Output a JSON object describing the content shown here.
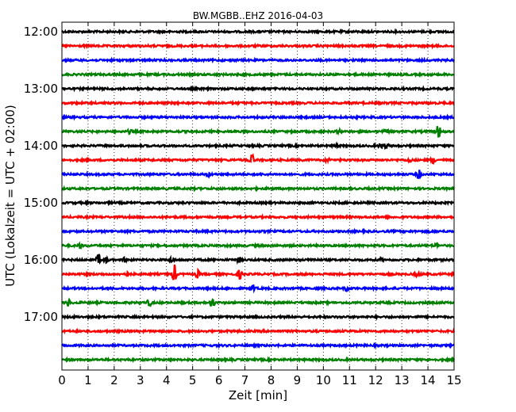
{
  "chart_data": {
    "type": "line",
    "title": "BW.MGBB..EHZ 2016-04-03",
    "xlabel": "Zeit  [min]",
    "ylabel": "UTC (Lokalzeit = UTC + 02:00)",
    "xlim": [
      0,
      15
    ],
    "x_ticks": [
      "0",
      "1",
      "2",
      "3",
      "4",
      "5",
      "6",
      "7",
      "8",
      "9",
      "10",
      "11",
      "12",
      "13",
      "14",
      "15"
    ],
    "y_ticks": [
      "12:00",
      "13:00",
      "14:00",
      "15:00",
      "16:00",
      "17:00"
    ],
    "grid": "vertical-dotted",
    "trace_colors": [
      "#000000",
      "#ff0000",
      "#0000ff",
      "#008000"
    ],
    "traces": [
      {
        "start": "12:00",
        "events": []
      },
      {
        "start": "12:15",
        "events": []
      },
      {
        "start": "12:30",
        "events": []
      },
      {
        "start": "12:45",
        "events": []
      },
      {
        "start": "13:00",
        "events": []
      },
      {
        "start": "13:15",
        "events": []
      },
      {
        "start": "13:30",
        "events": []
      },
      {
        "start": "13:45",
        "events": [
          {
            "t": 2.6,
            "amp": 0.2
          },
          {
            "t": 10.6,
            "amp": 0.2
          },
          {
            "t": 12.4,
            "amp": 0.25
          },
          {
            "t": 14.4,
            "amp": 0.8
          }
        ]
      },
      {
        "start": "14:00",
        "events": [
          {
            "t": 10.5,
            "amp": 0.15
          },
          {
            "t": 12.2,
            "amp": 0.3
          },
          {
            "t": 12.4,
            "amp": 0.25
          }
        ]
      },
      {
        "start": "14:15",
        "events": [
          {
            "t": 7.25,
            "amp": 0.8
          },
          {
            "t": 10.2,
            "amp": 0.2
          },
          {
            "t": 13.3,
            "amp": 0.2
          },
          {
            "t": 14.2,
            "amp": 0.3
          }
        ]
      },
      {
        "start": "14:30",
        "events": [
          {
            "t": 5.6,
            "amp": 0.2
          },
          {
            "t": 13.65,
            "amp": 0.55
          }
        ]
      },
      {
        "start": "14:45",
        "events": []
      },
      {
        "start": "15:00",
        "events": []
      },
      {
        "start": "15:15",
        "events": []
      },
      {
        "start": "15:30",
        "events": [
          {
            "t": 14.0,
            "amp": 0.15
          }
        ]
      },
      {
        "start": "15:45",
        "events": [
          {
            "t": 0.7,
            "amp": 0.3
          },
          {
            "t": 14.3,
            "amp": 0.2
          }
        ]
      },
      {
        "start": "16:00",
        "events": [
          {
            "t": 1.4,
            "amp": 0.6
          },
          {
            "t": 1.7,
            "amp": 0.25
          },
          {
            "t": 2.4,
            "amp": 0.2
          },
          {
            "t": 4.2,
            "amp": 0.3
          },
          {
            "t": 6.75,
            "amp": 0.25
          },
          {
            "t": 9.6,
            "amp": 0.15
          },
          {
            "t": 12.2,
            "amp": 0.15
          }
        ]
      },
      {
        "start": "16:15",
        "events": [
          {
            "t": 2.45,
            "amp": 0.3
          },
          {
            "t": 4.3,
            "amp": 1.0
          },
          {
            "t": 5.2,
            "amp": 0.4
          },
          {
            "t": 6.8,
            "amp": 0.5
          },
          {
            "t": 13.6,
            "amp": 0.2
          }
        ]
      },
      {
        "start": "16:30",
        "events": [
          {
            "t": 7.3,
            "amp": 0.4
          },
          {
            "t": 10.9,
            "amp": 0.3
          }
        ]
      },
      {
        "start": "16:45",
        "events": [
          {
            "t": 0.25,
            "amp": 0.4
          },
          {
            "t": 3.35,
            "amp": 0.4
          },
          {
            "t": 5.75,
            "amp": 0.5
          }
        ]
      },
      {
        "start": "17:00",
        "events": []
      },
      {
        "start": "17:15",
        "events": []
      },
      {
        "start": "17:30",
        "events": []
      },
      {
        "start": "17:45",
        "events": []
      }
    ]
  }
}
